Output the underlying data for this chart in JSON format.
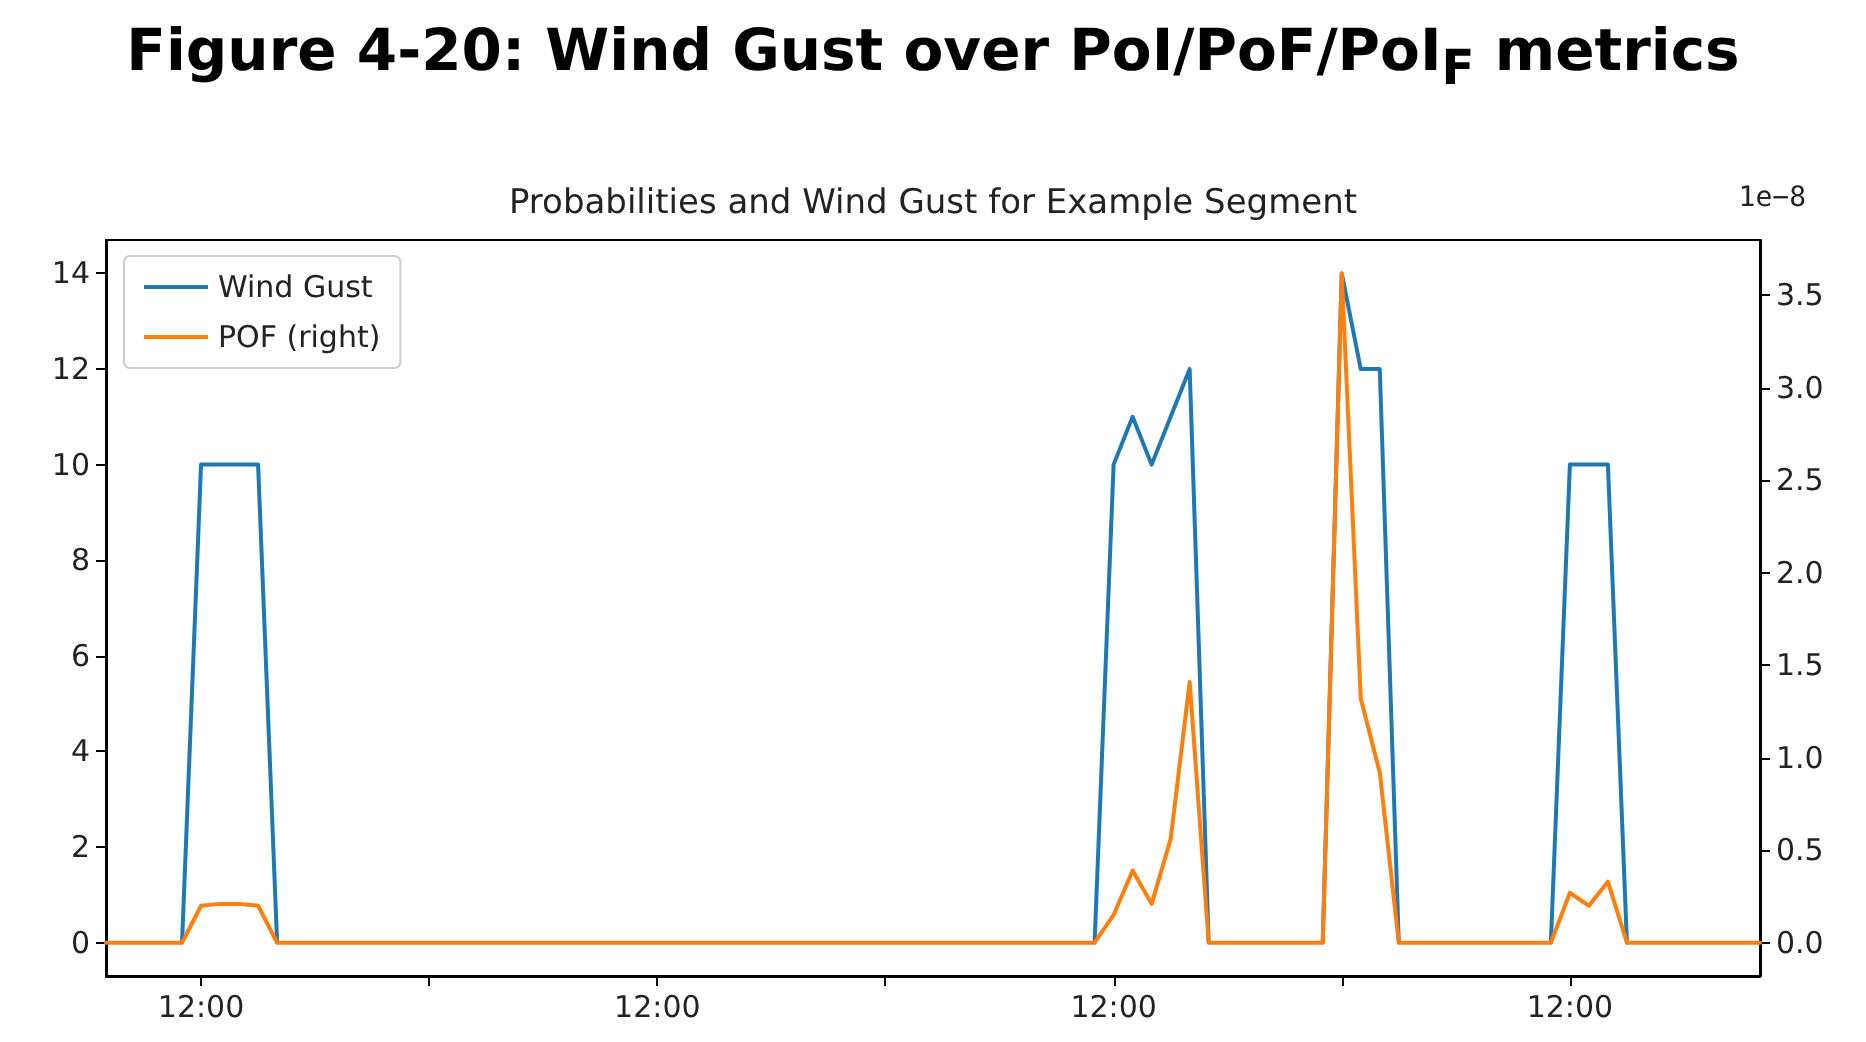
{
  "chart_data": {
    "type": "line",
    "title": "Figure 4-20: Wind Gust over PoI/PoF/PoI$_{F}$ metrics",
    "subtitle": "Probabilities and Wind Gust for Example Segment",
    "annotations": [
      "1e−8"
    ],
    "categories": [
      null,
      null,
      null,
      null,
      null,
      "12:00",
      null,
      null,
      null,
      null,
      null,
      null,
      null,
      null,
      null,
      null,
      null,
      null,
      null,
      null,
      null,
      null,
      null,
      null,
      null,
      null,
      null,
      null,
      null,
      "12:00",
      null,
      null,
      null,
      null,
      null,
      null,
      null,
      null,
      null,
      null,
      null,
      null,
      null,
      null,
      null,
      null,
      null,
      null,
      null,
      null,
      null,
      null,
      null,
      "12:00",
      null,
      null,
      null,
      null,
      null,
      null,
      null,
      null,
      null,
      null,
      null,
      null,
      null,
      null,
      null,
      null,
      null,
      null,
      null,
      null,
      null,
      null,
      null,
      "12:00",
      null,
      null,
      null,
      null,
      null,
      null,
      null,
      null,
      null,
      null
    ],
    "series": [
      {
        "name": "Wind Gust",
        "color": "#1f77b4",
        "values": [
          null,
          null,
          null,
          null,
          0,
          10,
          10,
          10,
          10,
          0,
          null,
          null,
          null,
          null,
          null,
          null,
          null,
          null,
          null,
          null,
          null,
          null,
          null,
          null,
          null,
          null,
          null,
          null,
          null,
          null,
          null,
          null,
          null,
          null,
          null,
          null,
          null,
          null,
          null,
          null,
          null,
          null,
          null,
          null,
          null,
          null,
          null,
          null,
          null,
          null,
          null,
          null,
          0,
          10,
          11,
          10,
          11,
          12,
          0,
          null,
          null,
          null,
          null,
          null,
          0,
          14,
          12,
          12,
          0,
          null,
          null,
          null,
          null,
          null,
          null,
          null,
          0,
          10,
          10,
          10,
          0,
          null,
          null,
          null,
          null,
          null,
          null,
          null
        ]
      },
      {
        "name": "POF (right)",
        "color": "#ff7f0e",
        "axis": "y2",
        "values": [
          0,
          0,
          0,
          0,
          0,
          0.2,
          0.21,
          0.21,
          0.2,
          0,
          0,
          0,
          0,
          0,
          0,
          0,
          0,
          0,
          0,
          0,
          0,
          0,
          0,
          0,
          0,
          0,
          0,
          0,
          0,
          0,
          0,
          0,
          0,
          0,
          0,
          0,
          0,
          0,
          0,
          0,
          0,
          0,
          0,
          0,
          0,
          0,
          0,
          0,
          0,
          0,
          0,
          0,
          0,
          0.15,
          0.39,
          0.21,
          0.56,
          1.41,
          0,
          0,
          0,
          0,
          0,
          0,
          0,
          3.62,
          1.32,
          0.92,
          0,
          0,
          0,
          0,
          0,
          0,
          0,
          0,
          0,
          0.27,
          0.2,
          0.33,
          0,
          0,
          0,
          0,
          0,
          0,
          0,
          0
        ]
      }
    ],
    "ylim": [
      -0.7,
      14.7
    ],
    "yticks": [
      0,
      2,
      4,
      6,
      8,
      10,
      12,
      14
    ],
    "y2lim": [
      -0.18,
      3.8
    ],
    "y2ticks": [
      {
        "value": 0,
        "label": "0.0"
      },
      {
        "value": 0.5,
        "label": "0.5"
      },
      {
        "value": 1,
        "label": "1.0"
      },
      {
        "value": 1.5,
        "label": "1.5"
      },
      {
        "value": 2,
        "label": "2.0"
      },
      {
        "value": 2.5,
        "label": "2.5"
      },
      {
        "value": 3,
        "label": "3.0"
      },
      {
        "value": 3.5,
        "label": "3.5"
      }
    ],
    "legend": "top left",
    "grid": false,
    "marker": "none",
    "line_style": "solid"
  }
}
